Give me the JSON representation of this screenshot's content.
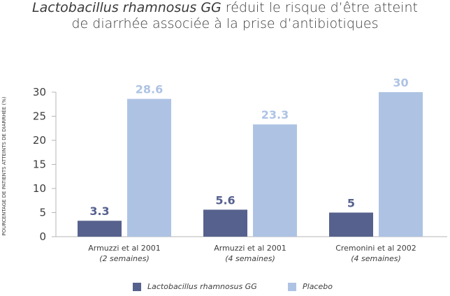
{
  "title": {
    "line1_italic": "Lactobacillus rhamnosus GG",
    "line1_rest": " réduit le risque d’être atteint",
    "line2": "de diarrhée associée à la prise d’antibiotiques"
  },
  "colors": {
    "lgg": "#56618e",
    "placebo": "#aec3e4",
    "axis": "#b5b5b5",
    "text": "#3d3d3d"
  },
  "chart_data": {
    "type": "bar",
    "ylabel": "POURCENTAGE DE PATIENTS ATTEINTS DE DIARRHÉE (%)",
    "ylim": [
      0,
      30
    ],
    "yticks": [
      "0",
      "5",
      "10",
      "15",
      "20",
      "25",
      "30"
    ],
    "grid": false,
    "categories": [
      {
        "line1": "Armuzzi et al 2001",
        "line2": "(2 semaines)"
      },
      {
        "line1": "Armuzzi et al 2001",
        "line2": "(4 semaines)"
      },
      {
        "line1": "Cremonini et al 2002",
        "line2": "(4 semaines)"
      }
    ],
    "series": [
      {
        "name": "Lactobacillus rhamnosus GG",
        "values": [
          3.3,
          5.6,
          5
        ],
        "labels": [
          "3.3",
          "5.6",
          "5"
        ],
        "color": "#56618e"
      },
      {
        "name": "Placebo",
        "values": [
          28.6,
          23.3,
          30
        ],
        "labels": [
          "28.6",
          "23.3",
          "30"
        ],
        "color": "#aec3e4"
      }
    ],
    "legend_position": "bottom"
  }
}
